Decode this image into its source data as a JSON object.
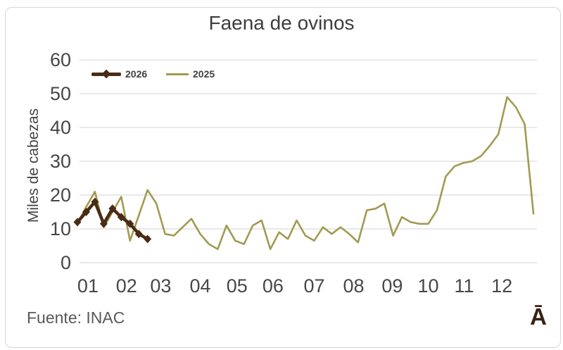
{
  "title": "Faena de ovinos",
  "y_axis_title": "Miles de cabezas",
  "source": "Fuente: INAC",
  "watermark": "Ā",
  "legend": {
    "items": [
      {
        "label": "2026",
        "swatch": "thick-brown-line-with-diamond-marker"
      },
      {
        "label": "2025",
        "swatch": "thin-olive-line"
      }
    ]
  },
  "colors": {
    "series_2026": "#4a2b15",
    "series_2025": "#a19b52",
    "gridline": "#e4e1e1",
    "tick_text": "#474747",
    "title_text": "#3d3d3d",
    "frame_border": "#d7d4d4",
    "watermark_brown": "#3a2212"
  },
  "chart_data": {
    "type": "line",
    "title": "Faena de ovinos",
    "xlabel": "",
    "ylabel": "Miles de cabezas",
    "x_unit": "weekly points across one year, axis labeled by month number",
    "categories": [
      "01",
      "02",
      "03",
      "04",
      "05",
      "06",
      "07",
      "08",
      "09",
      "10",
      "11",
      "12"
    ],
    "month_label_weeks": [
      2.2,
      6.6,
      10.5,
      15.0,
      19.2,
      23.3,
      28.0,
      32.5,
      36.9,
      41.0,
      45.1,
      49.4
    ],
    "ylim": [
      0,
      60
    ],
    "yticks": [
      0,
      10,
      20,
      30,
      40,
      50,
      60
    ],
    "grid": "horizontal-only",
    "legend_position": "top-left-inside",
    "series": [
      {
        "name": "2026",
        "color": "#4a2b15",
        "marker": "diamond",
        "line_width": 4.5,
        "values": [
          12,
          15,
          18,
          11.5,
          16,
          13.5,
          11.5,
          8.5,
          7
        ]
      },
      {
        "name": "2025",
        "color": "#a19b52",
        "marker": "none",
        "line_width": 2.6,
        "values": [
          11.5,
          16.5,
          21,
          10.5,
          15,
          19.5,
          6.5,
          14,
          21.5,
          17.5,
          8.5,
          8,
          10.5,
          13,
          8.5,
          5.5,
          4,
          11,
          6.5,
          5.5,
          11,
          12.5,
          4,
          9,
          7,
          12.5,
          8,
          6.5,
          10.5,
          8.5,
          10.5,
          8.5,
          6,
          15.5,
          16,
          17.5,
          8,
          13.5,
          12,
          11.5,
          11.5,
          15.5,
          25.5,
          28.5,
          29.5,
          30,
          31.5,
          34.5,
          38,
          49,
          46,
          41,
          14.5
        ]
      }
    ]
  }
}
